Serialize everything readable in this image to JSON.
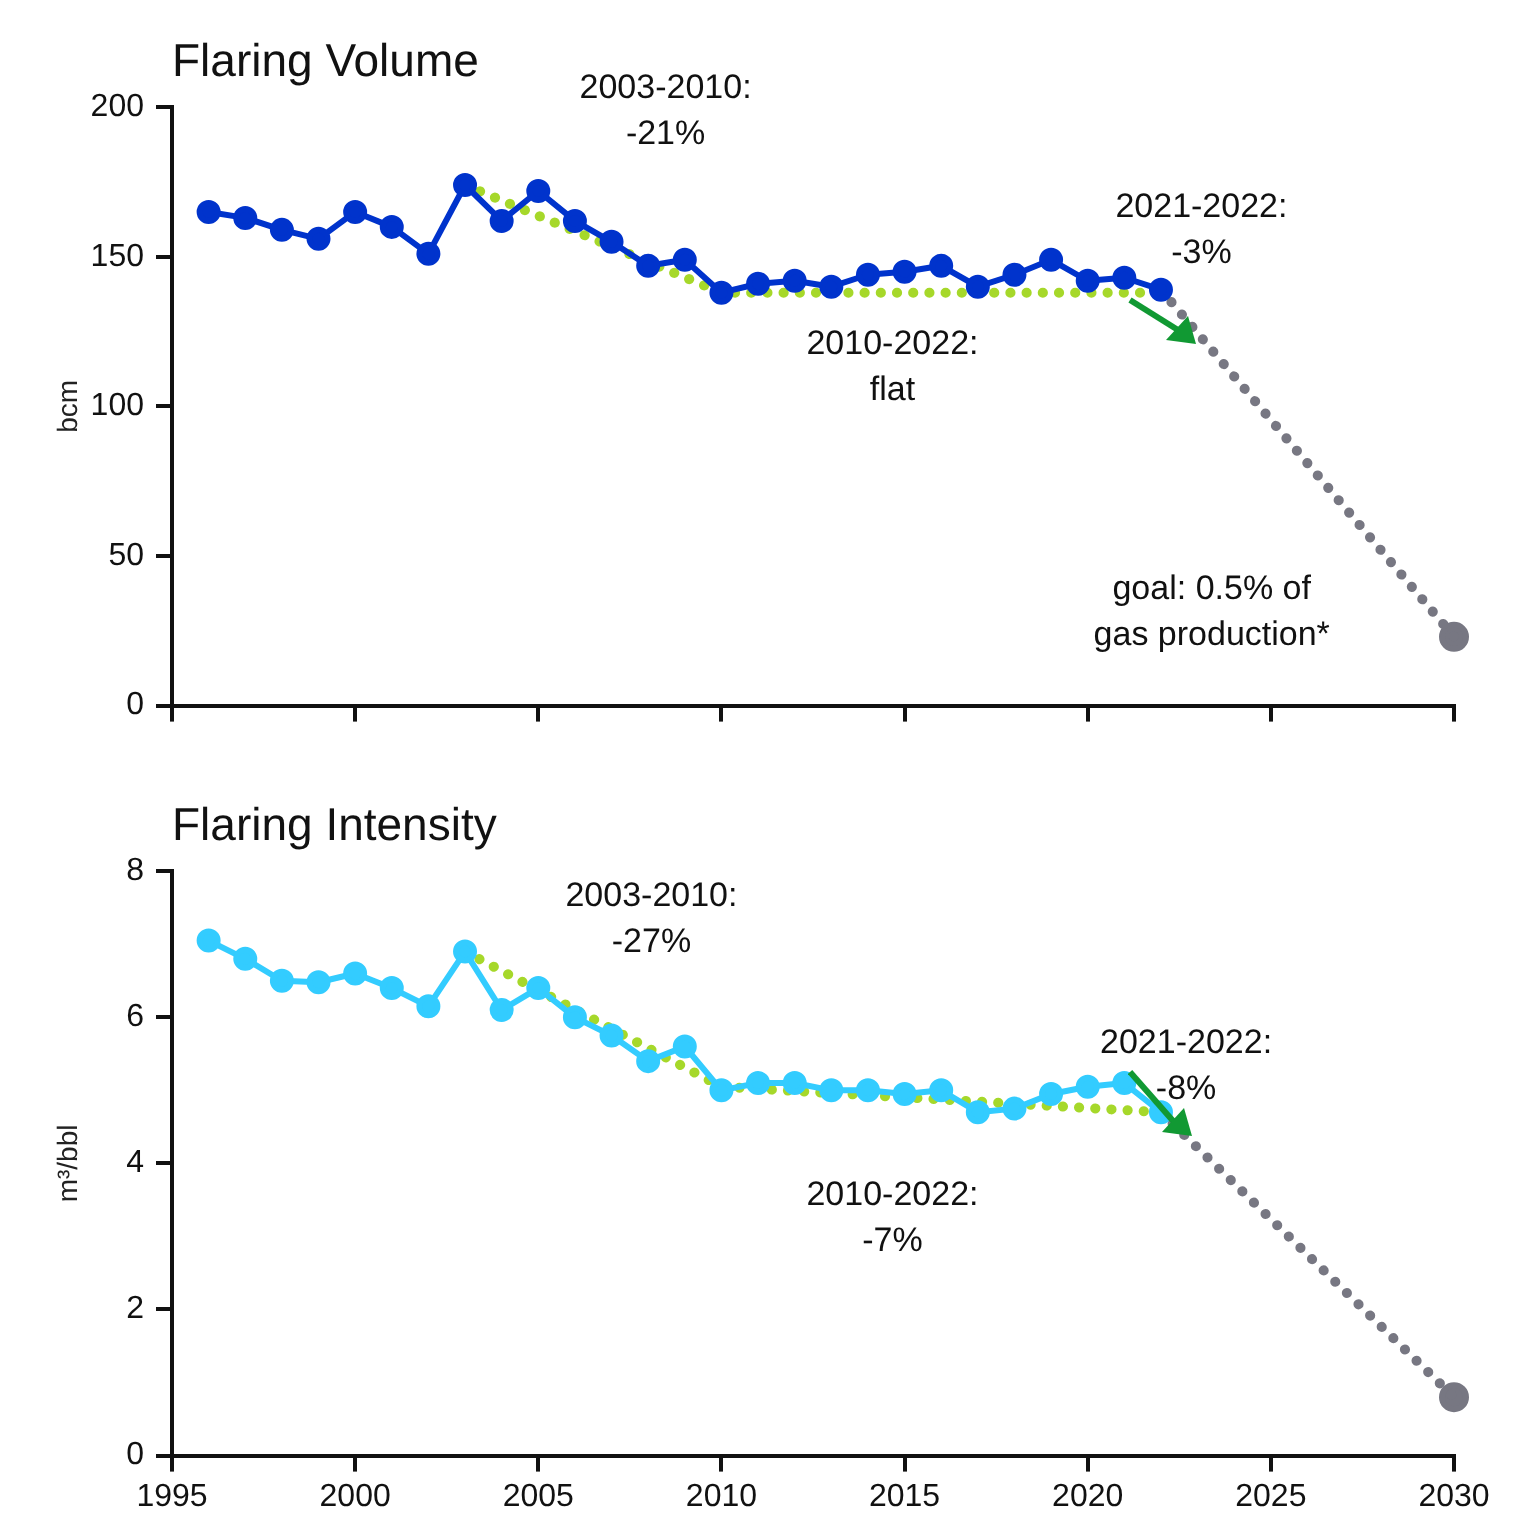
{
  "chart_data": [
    {
      "type": "line",
      "title": "Flaring Volume",
      "ylabel": "bcm",
      "xlim": [
        1995,
        2030
      ],
      "xticks": [
        1995,
        2000,
        2005,
        2010,
        2015,
        2020,
        2025,
        2030
      ],
      "ylim": [
        0,
        200
      ],
      "yticks": [
        0,
        50,
        100,
        150,
        200
      ],
      "tick_labels": "y",
      "grid": false,
      "x": [
        1996,
        1997,
        1998,
        1999,
        2000,
        2001,
        2002,
        2003,
        2004,
        2005,
        2006,
        2007,
        2008,
        2009,
        2010,
        2011,
        2012,
        2013,
        2014,
        2015,
        2016,
        2017,
        2018,
        2019,
        2020,
        2021,
        2022
      ],
      "series": [
        {
          "type": "line",
          "color": "#0033cc",
          "marker": "circle",
          "line_style": "solid",
          "values": [
            165,
            163,
            159,
            156,
            165,
            160,
            151,
            174,
            162,
            172,
            162,
            155,
            147,
            149,
            138,
            141,
            142,
            140,
            144,
            145,
            147,
            140,
            144,
            149,
            142,
            143,
            139
          ]
        },
        {
          "type": "line",
          "color": "#a6d82a",
          "marker": "none",
          "line_style": "dotted",
          "x": [
            2003,
            2010,
            2022
          ],
          "values": [
            174,
            138,
            138
          ]
        },
        {
          "type": "line",
          "color": "#777782",
          "marker": "none",
          "line_style": "dotted",
          "x": [
            2022,
            2030
          ],
          "values": [
            139,
            23
          ]
        },
        {
          "type": "scatter",
          "color": "#777782",
          "marker": "circle",
          "x": [
            2030
          ],
          "values": [
            23
          ]
        }
      ],
      "annotations": [
        "2003-2010:\n-21%",
        "2010-2022:\nflat",
        "2021-2022:\n-3%",
        "goal: 0.5% of\ngas production*"
      ]
    },
    {
      "type": "line",
      "title": "Flaring Intensity",
      "ylabel": "m³/bbl",
      "xlim": [
        1995,
        2030
      ],
      "xticks": [
        1995,
        2000,
        2005,
        2010,
        2015,
        2020,
        2025,
        2030
      ],
      "ylim": [
        0,
        8
      ],
      "yticks": [
        0,
        2,
        4,
        6,
        8
      ],
      "grid": false,
      "x": [
        1996,
        1997,
        1998,
        1999,
        2000,
        2001,
        2002,
        2003,
        2004,
        2005,
        2006,
        2007,
        2008,
        2009,
        2010,
        2011,
        2012,
        2013,
        2014,
        2015,
        2016,
        2017,
        2018,
        2019,
        2020,
        2021,
        2022
      ],
      "series": [
        {
          "type": "line",
          "color": "#33ccff",
          "marker": "circle",
          "line_style": "solid",
          "values": [
            7.05,
            6.8,
            6.5,
            6.48,
            6.6,
            6.4,
            6.15,
            6.9,
            6.1,
            6.4,
            6.0,
            5.75,
            5.4,
            5.6,
            5.0,
            5.1,
            5.1,
            5.0,
            5.0,
            4.95,
            5.0,
            4.7,
            4.75,
            4.95,
            5.05,
            5.1,
            4.7
          ]
        },
        {
          "type": "line",
          "color": "#a6d82a",
          "marker": "none",
          "line_style": "dotted",
          "x": [
            2003,
            2010,
            2022
          ],
          "values": [
            6.9,
            5.05,
            4.7
          ]
        },
        {
          "type": "line",
          "color": "#777782",
          "marker": "none",
          "line_style": "dotted",
          "x": [
            2022,
            2030
          ],
          "values": [
            4.7,
            0.8
          ]
        },
        {
          "type": "scatter",
          "color": "#777782",
          "marker": "circle",
          "x": [
            2030
          ],
          "values": [
            0.8
          ]
        }
      ],
      "annotations": [
        "2003-2010:\n-27%",
        "2010-2022:\n-7%",
        "2021-2022:\n-8%"
      ]
    }
  ]
}
